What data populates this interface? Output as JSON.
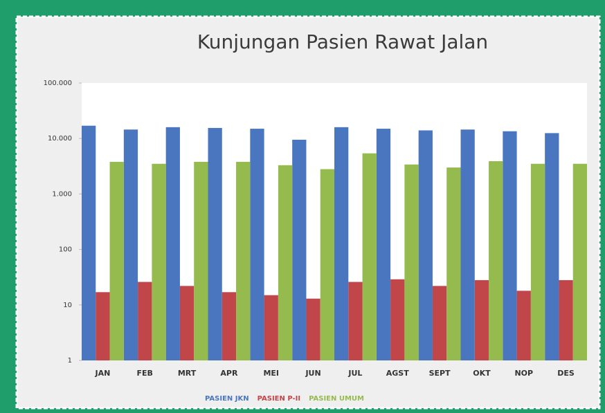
{
  "chart_data": {
    "type": "bar",
    "title": "Kunjungan Pasien Rawat Jalan",
    "categories": [
      "JAN",
      "FEB",
      "MRT",
      "APR",
      "MEI",
      "JUN",
      "JUL",
      "AGST",
      "SEPT",
      "OKT",
      "NOP",
      "DES"
    ],
    "series": [
      {
        "name": "PASIEN JKN",
        "color": "#4a76c0",
        "values": [
          17000,
          14500,
          16000,
          15500,
          15000,
          9500,
          16000,
          15000,
          14000,
          14500,
          13500,
          12500
        ]
      },
      {
        "name": "PASIEN P-II",
        "color": "#c0464a",
        "values": [
          17,
          26,
          22,
          17,
          15,
          13,
          26,
          29,
          22,
          28,
          18,
          28
        ]
      },
      {
        "name": "PASIEN UMUM",
        "color": "#95bb4e",
        "values": [
          3800,
          3500,
          3800,
          3800,
          3300,
          2800,
          5400,
          3400,
          3000,
          3900,
          3500,
          3500
        ]
      }
    ],
    "ylim": [
      1,
      100000
    ],
    "yticks": [
      1,
      10,
      100,
      {
        "value": 1000,
        "label": "1.000"
      },
      {
        "value": 10000,
        "label": "10.000"
      },
      {
        "value": 100000,
        "label": "100.000"
      }
    ],
    "log_y": true,
    "legend": "bottom"
  }
}
